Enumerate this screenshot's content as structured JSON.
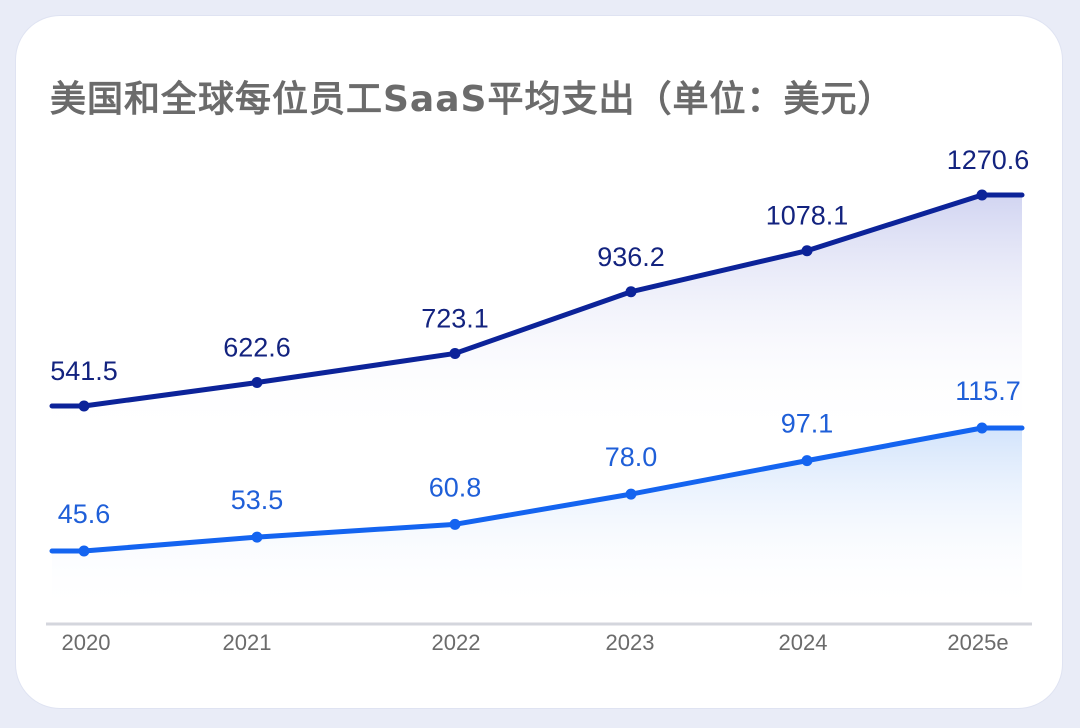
{
  "title": "美国和全球每位员工SaaS平均支出（单位：美元）",
  "colors": {
    "top_series": "#0c2399",
    "bottom_series": "#1464f0",
    "top_label": "#13237f",
    "bottom_label": "#1f5fd8"
  },
  "chart_data": {
    "type": "line",
    "title": "美国和全球每位员工SaaS平均支出（单位：美元）",
    "x": [
      "2020",
      "2021",
      "2022",
      "2023",
      "2024",
      "2025e"
    ],
    "series": [
      {
        "values": [
          541.5,
          622.6,
          723.1,
          936.2,
          1078.1,
          1270.6
        ]
      },
      {
        "values": [
          45.6,
          53.5,
          60.8,
          78.0,
          97.1,
          115.7
        ]
      }
    ],
    "value_labels": [
      [
        "541.5",
        "622.6",
        "723.1",
        "936.2",
        "1078.1",
        "1270.6"
      ],
      [
        "45.6",
        "53.5",
        "60.8",
        "78.0",
        "97.1",
        "115.7"
      ]
    ],
    "grid": false,
    "legend": "none",
    "area_fill": true
  }
}
